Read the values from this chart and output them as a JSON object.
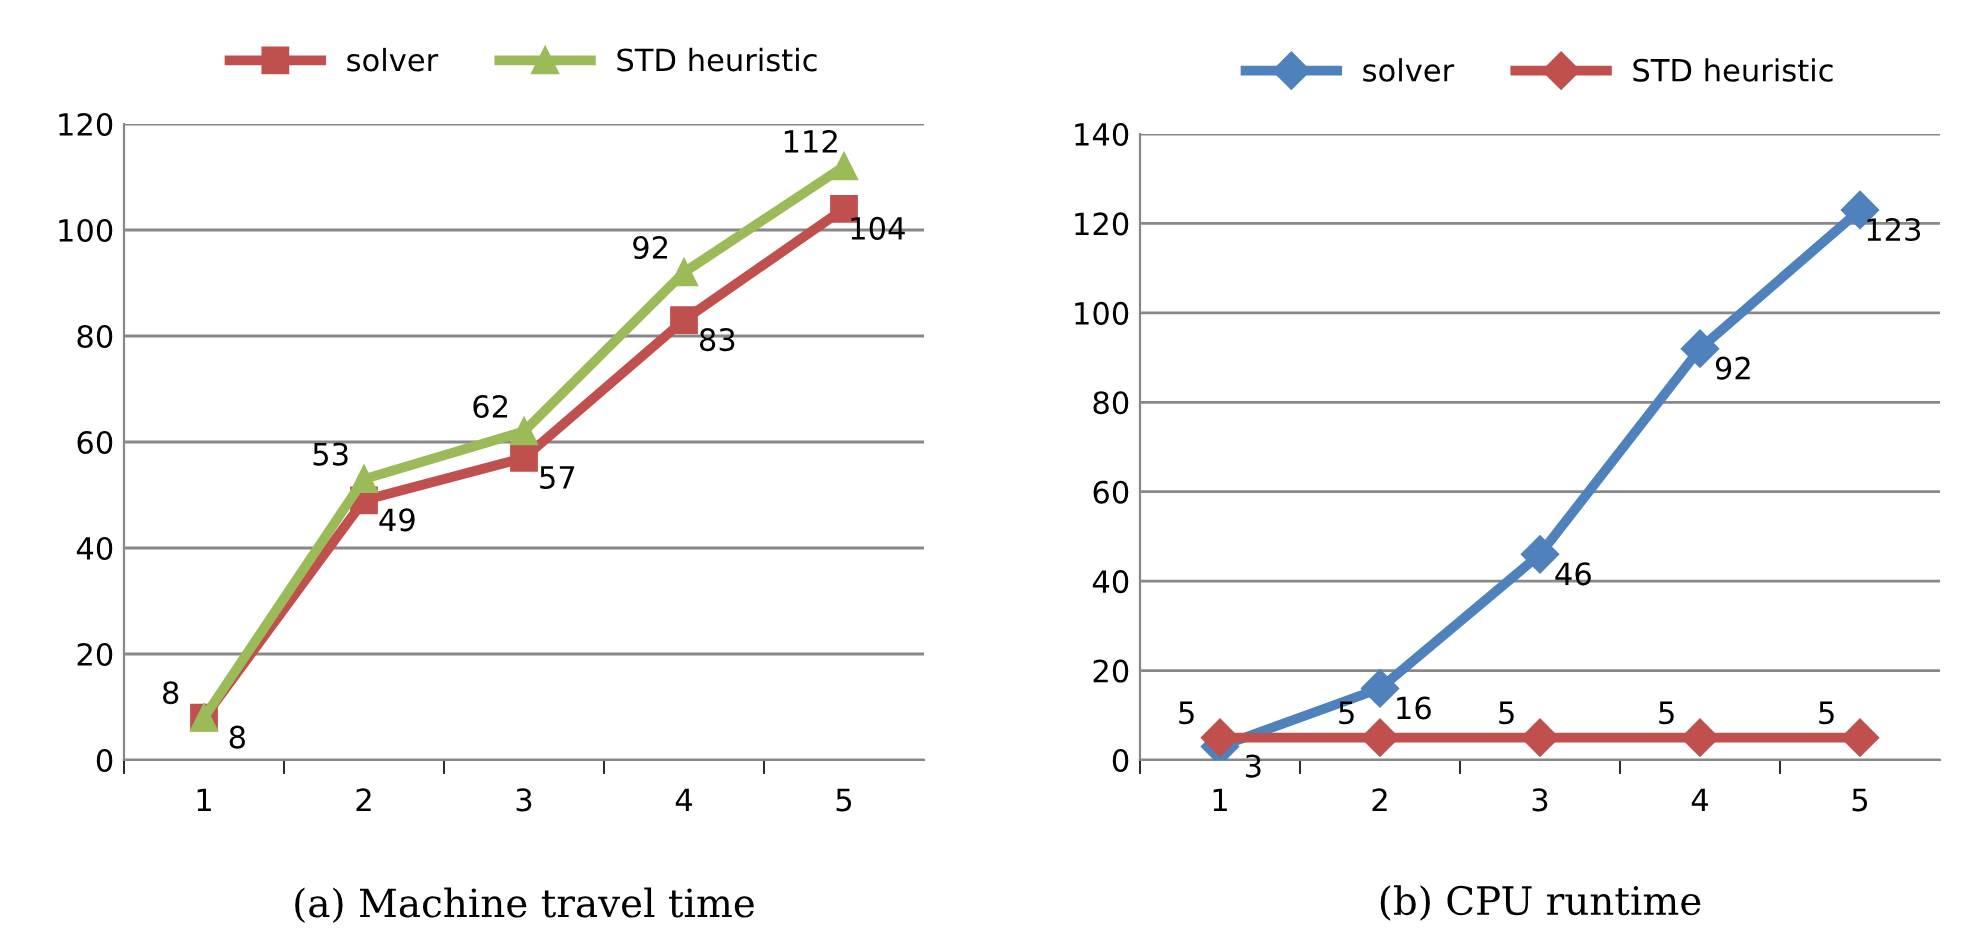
{
  "chart_data": [
    {
      "type": "line",
      "title": "(a) Machine travel time",
      "categories": [
        "1",
        "2",
        "3",
        "4",
        "5"
      ],
      "series": [
        {
          "name": "solver",
          "color": "#c0504d",
          "values": [
            8,
            49,
            57,
            83,
            104
          ],
          "marker": "square"
        },
        {
          "name": "STD heuristic",
          "color": "#9bbb59",
          "values": [
            8,
            53,
            62,
            92,
            112
          ],
          "marker": "triangle"
        }
      ],
      "ylim": [
        0,
        120
      ],
      "yticks": [
        0,
        20,
        40,
        60,
        80,
        100,
        120
      ],
      "grid": "y",
      "legend": "top",
      "data_labels": true,
      "line_style": "solid"
    },
    {
      "type": "line",
      "title": "(b) CPU runtime",
      "categories": [
        "1",
        "2",
        "3",
        "4",
        "5"
      ],
      "series": [
        {
          "name": "solver",
          "color": "#4f81bd",
          "values": [
            3,
            16,
            46,
            92,
            123
          ],
          "marker": "diamond"
        },
        {
          "name": "STD heuristic",
          "color": "#c0504d",
          "values": [
            5,
            5,
            5,
            5,
            5
          ],
          "marker": "diamond"
        }
      ],
      "ylim": [
        0,
        140
      ],
      "yticks": [
        0,
        20,
        40,
        60,
        80,
        100,
        120,
        140
      ],
      "grid": "y",
      "legend": "top",
      "data_labels": true,
      "line_style": "solid"
    }
  ]
}
